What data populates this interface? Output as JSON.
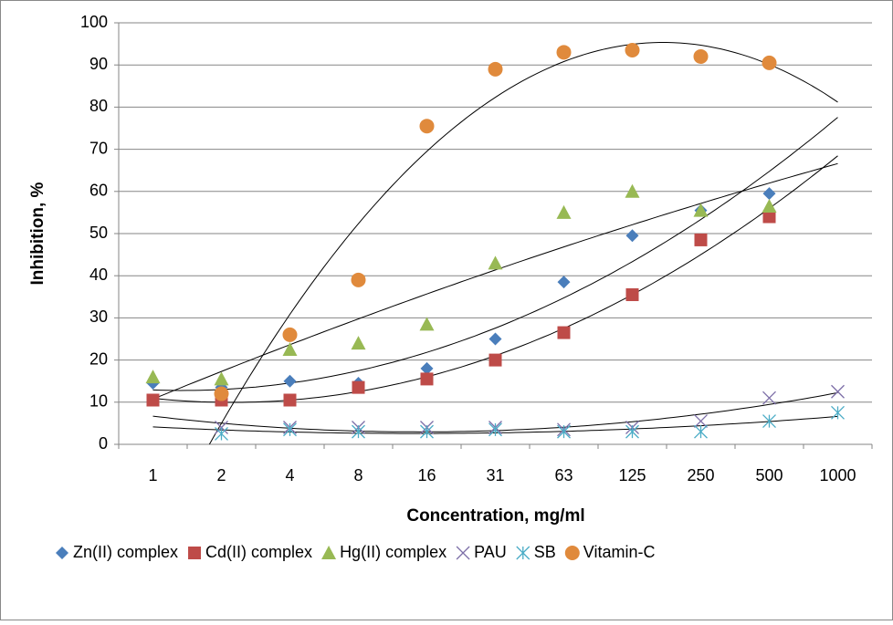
{
  "chart_data": {
    "type": "scatter",
    "x_label": "Concentration, mg/ml",
    "y_label": "Inhibition, %",
    "categories": [
      "1",
      "2",
      "4",
      "8",
      "16",
      "31",
      "63",
      "125",
      "250",
      "500",
      "1000"
    ],
    "ylim": [
      0,
      100
    ],
    "yticks": [
      0,
      10,
      20,
      30,
      40,
      50,
      60,
      70,
      80,
      90,
      100
    ],
    "grid": true,
    "trendline_order": 2,
    "series": [
      {
        "name": "Zn(II) complex",
        "color": "#4a7ebb",
        "marker": "diamond",
        "values": [
          14.5,
          13.5,
          15,
          14.5,
          18,
          25,
          38.5,
          49.5,
          55.5,
          59.5,
          null
        ]
      },
      {
        "name": "Cd(II) complex",
        "color": "#be4b48",
        "marker": "square",
        "values": [
          10.5,
          10.5,
          10.5,
          13.5,
          15.5,
          20,
          26.5,
          35.5,
          48.5,
          54,
          null
        ]
      },
      {
        "name": "Hg(II) complex",
        "color": "#98b954",
        "marker": "triangle",
        "values": [
          16,
          15.5,
          22.5,
          24,
          28.5,
          43,
          55,
          60,
          55.5,
          56.5,
          null
        ]
      },
      {
        "name": "PAU",
        "color": "#7d6fa8",
        "marker": "x",
        "values": [
          null,
          4,
          4,
          4,
          4,
          4,
          3.5,
          4,
          5.5,
          11,
          12.5
        ]
      },
      {
        "name": "SB",
        "color": "#4bacc6",
        "marker": "star",
        "values": [
          null,
          2.5,
          3.5,
          3,
          3,
          3.5,
          3,
          3,
          3,
          5.5,
          7.5
        ]
      },
      {
        "name": "Vitamin-C",
        "color": "#e08a3c",
        "marker": "circle",
        "values": [
          null,
          12,
          26,
          39,
          75.5,
          89,
          93,
          93.5,
          92,
          90.5,
          null
        ]
      }
    ]
  }
}
